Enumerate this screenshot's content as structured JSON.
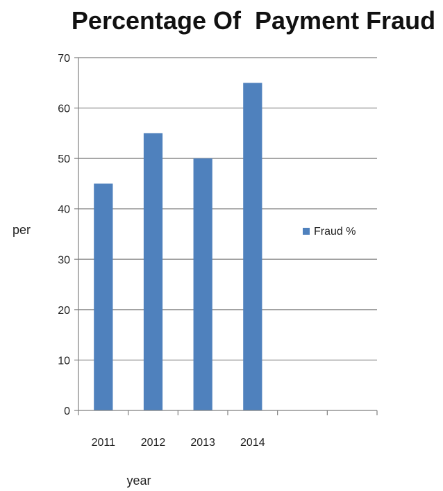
{
  "chart_data": {
    "type": "bar",
    "title": "Percentage Of  Payment Fraud",
    "xlabel": "year",
    "ylabel": "per",
    "categories": [
      "2011",
      "2012",
      "2013",
      "2014",
      "",
      ""
    ],
    "series": [
      {
        "name": "Fraud %",
        "values": [
          45,
          55,
          50,
          65,
          null,
          null
        ],
        "color": "#4f81bd"
      }
    ],
    "ylim": [
      0,
      70
    ],
    "yticks": [
      0,
      10,
      20,
      30,
      40,
      50,
      60,
      70
    ],
    "grid": true,
    "legend": "right"
  }
}
